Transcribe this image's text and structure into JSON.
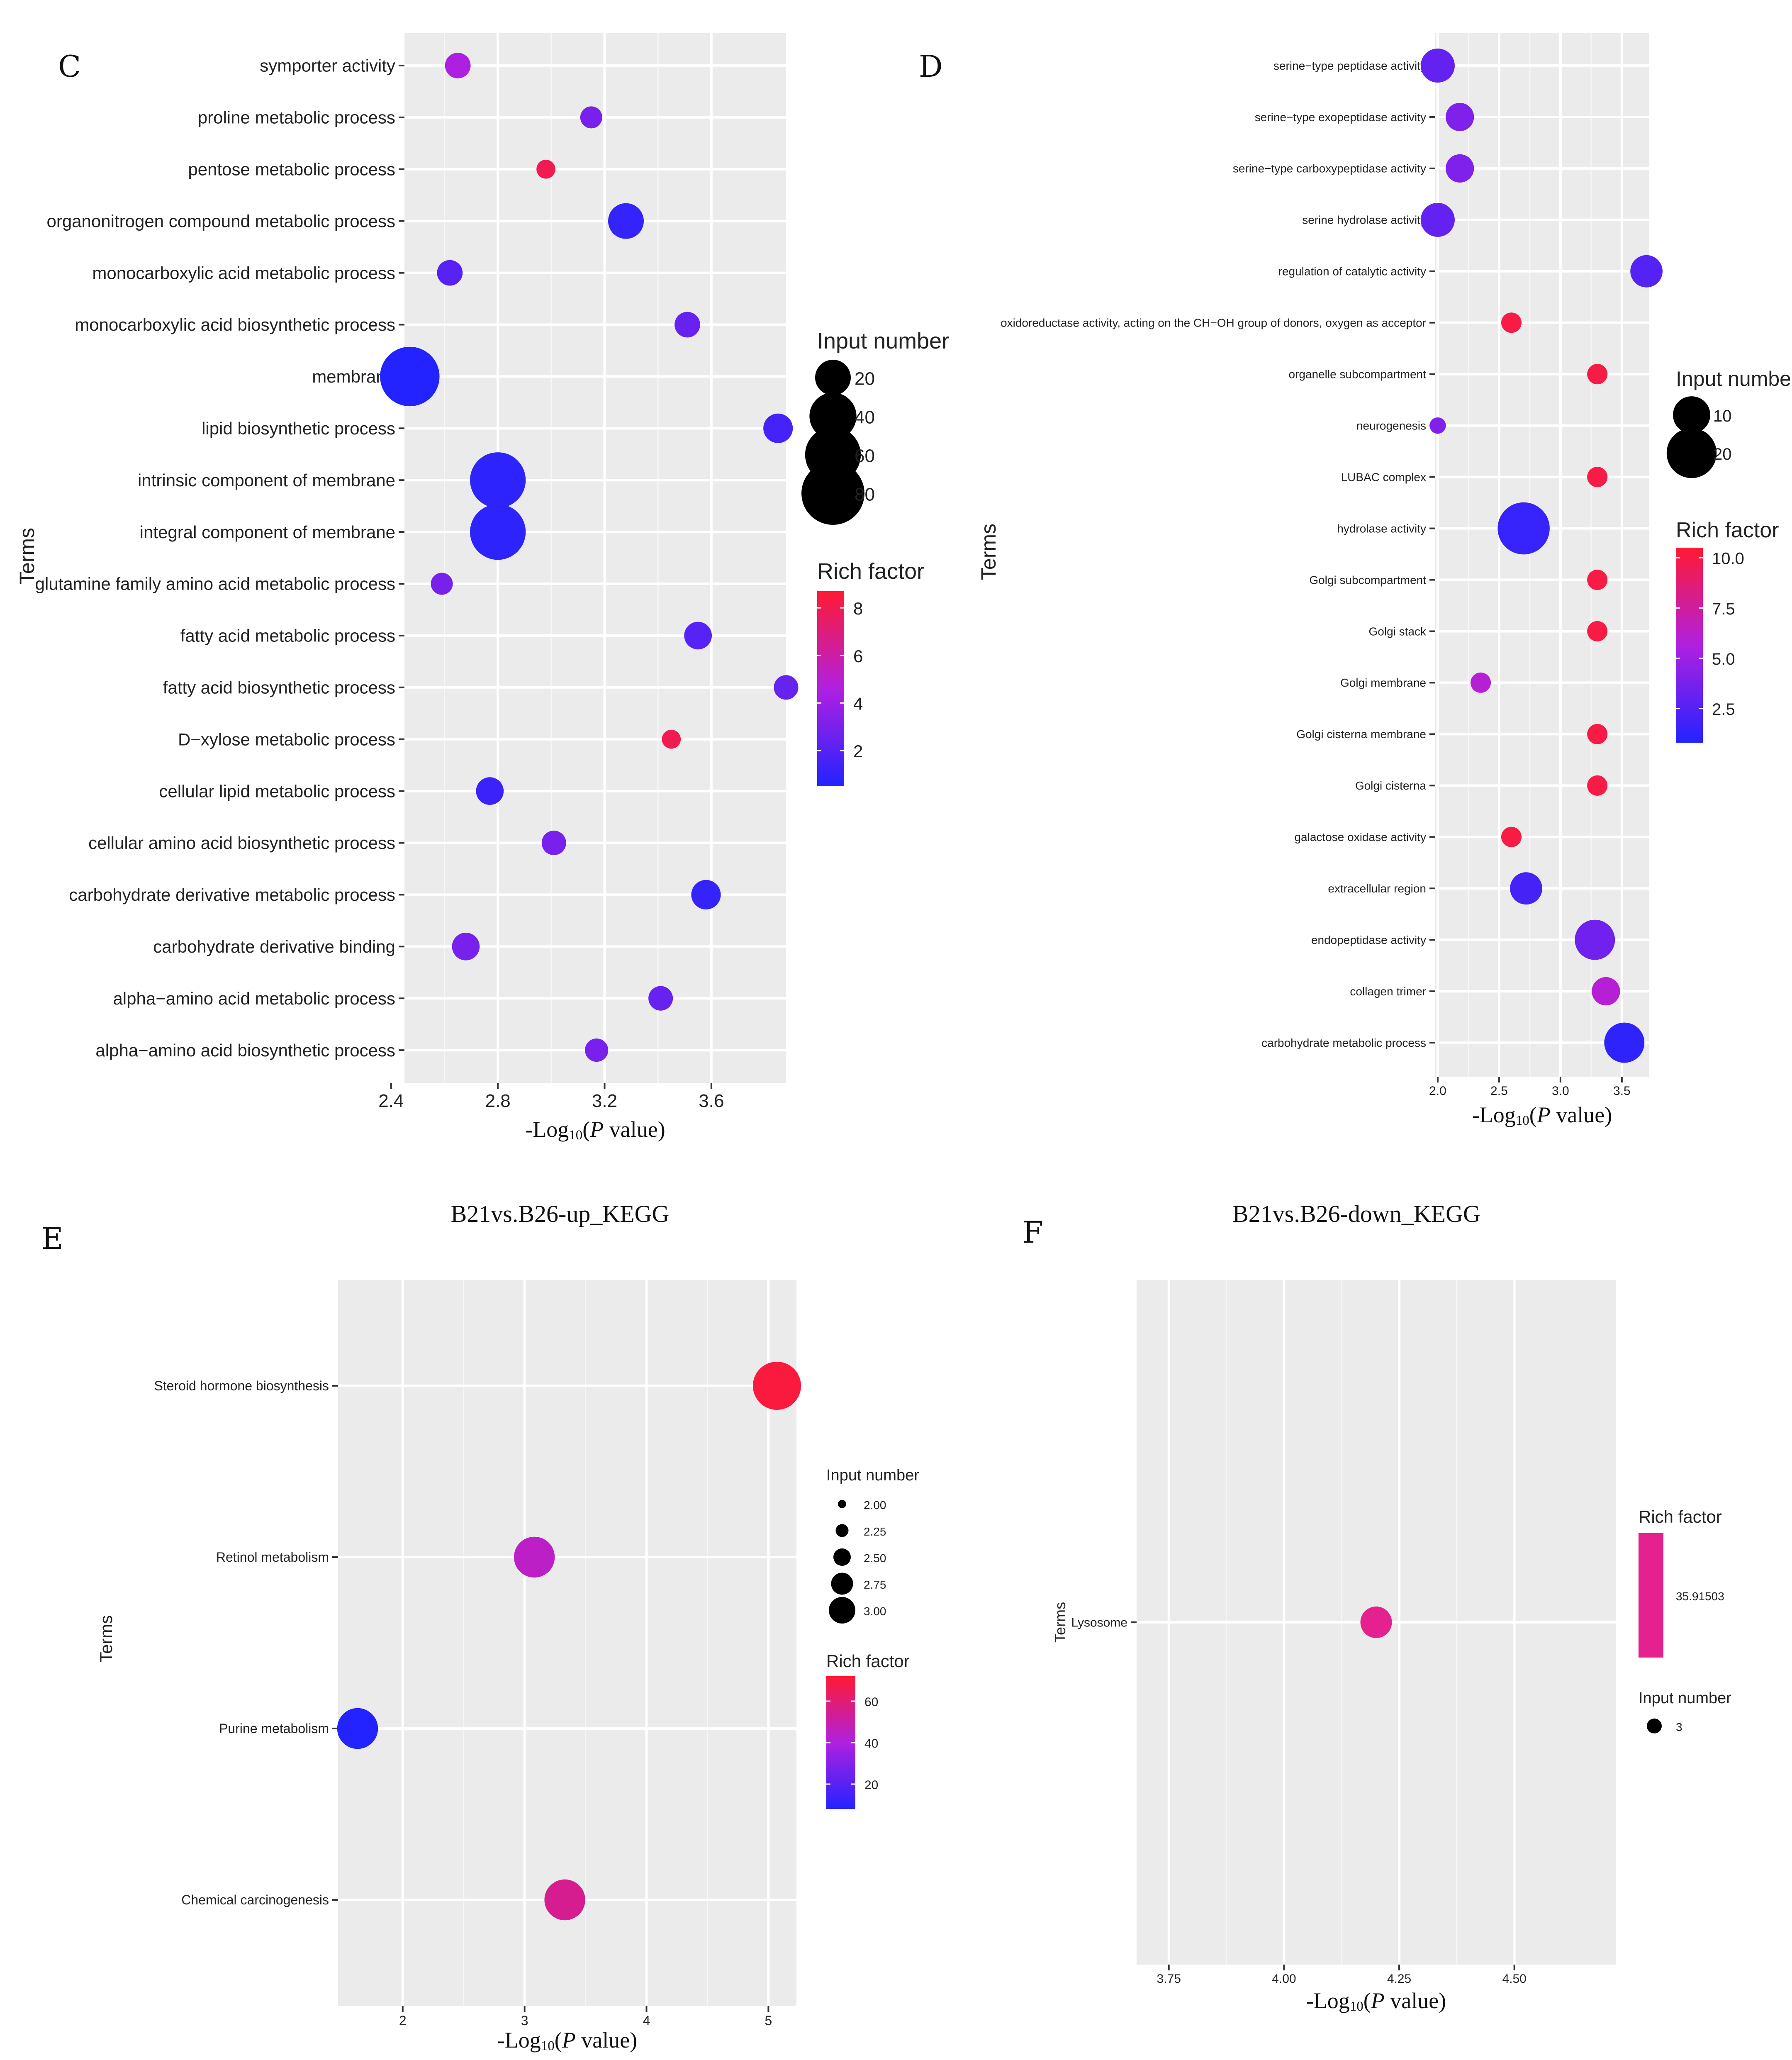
{
  "figure": {
    "panels": [
      {
        "letter": "C",
        "title": ""
      },
      {
        "letter": "D",
        "title": ""
      },
      {
        "letter": "E",
        "title": "B21vs.B26-up_KEGG"
      },
      {
        "letter": "F",
        "title": "B21vs.B26-down_KEGG"
      }
    ]
  },
  "chart_data": [
    {
      "id": "C",
      "type": "scatter",
      "title": "",
      "ylabel": "Terms",
      "xlabel": "-Log10(P value)",
      "xlim": [
        2.45,
        3.88
      ],
      "x_ticks": [
        2.4,
        2.8,
        3.2,
        3.6
      ],
      "x_tick_labels": [
        "2.4",
        "2.8",
        "3.2",
        "3.6"
      ],
      "terms": [
        "symporter activity",
        "proline metabolic process",
        "pentose metabolic process",
        "organonitrogen compound metabolic process",
        "monocarboxylic acid metabolic process",
        "monocarboxylic acid biosynthetic process",
        "membrane",
        "lipid biosynthetic process",
        "intrinsic component of membrane",
        "integral component of membrane",
        "glutamine family amino acid metabolic process",
        "fatty acid metabolic process",
        "fatty acid biosynthetic process",
        "D−xylose metabolic process",
        "cellular lipid metabolic process",
        "cellular amino acid biosynthetic process",
        "carbohydrate derivative metabolic process",
        "carbohydrate derivative binding",
        "alpha−amino acid metabolic process",
        "alpha−amino acid biosynthetic process"
      ],
      "x": [
        2.65,
        3.15,
        2.98,
        3.28,
        2.62,
        3.51,
        2.47,
        3.85,
        2.8,
        2.8,
        2.59,
        3.55,
        3.88,
        3.45,
        2.77,
        3.01,
        3.58,
        2.68,
        3.41,
        3.17
      ],
      "input_number": [
        8,
        5,
        3,
        20,
        8,
        8,
        70,
        12,
        60,
        60,
        5,
        10,
        7,
        3,
        10,
        7,
        12,
        10,
        7,
        6
      ],
      "rich_factor": [
        4.5,
        3.0,
        8.0,
        1.0,
        2.0,
        2.5,
        0.5,
        1.5,
        0.8,
        0.8,
        3.0,
        2.0,
        2.5,
        8.0,
        1.2,
        3.0,
        1.0,
        3.0,
        2.5,
        3.0
      ],
      "legend": {
        "size_title": "Input number",
        "size_values": [
          20,
          40,
          60,
          80
        ],
        "size_labels": [
          "20",
          "40",
          "60",
          "80"
        ],
        "color_title": "Rich factor",
        "color_range": [
          0.5,
          8.7
        ],
        "color_ticks": [
          2,
          4,
          6,
          8
        ],
        "color_tick_labels": [
          "2",
          "4",
          "6",
          "8"
        ]
      }
    },
    {
      "id": "D",
      "type": "scatter",
      "title": "",
      "ylabel": "Terms",
      "xlabel": "-Log10(P value)",
      "xlim": [
        1.98,
        3.72
      ],
      "x_ticks": [
        2.0,
        2.5,
        3.0,
        3.5
      ],
      "x_tick_labels": [
        "2.0",
        "2.5",
        "3.0",
        "3.5"
      ],
      "terms": [
        "serine−type peptidase activity",
        "serine−type exopeptidase activity",
        "serine−type carboxypeptidase activity",
        "serine hydrolase activity",
        "regulation of catalytic activity",
        "oxidoreductase activity, acting on the CH−OH group of donors, oxygen as acceptor",
        "organelle subcompartment",
        "neurogenesis",
        "LUBAC complex",
        "hydrolase activity",
        "Golgi subcompartment",
        "Golgi stack",
        "Golgi membrane",
        "Golgi cisterna membrane",
        "Golgi cisterna",
        "galactose oxidase activity",
        "extracellular region",
        "endopeptidase activity",
        "collagen trimer",
        "carbohydrate metabolic process"
      ],
      "x": [
        2.0,
        2.18,
        2.18,
        2.0,
        3.7,
        2.6,
        3.3,
        2.0,
        3.3,
        2.7,
        3.3,
        3.3,
        2.35,
        3.3,
        3.3,
        2.6,
        2.72,
        3.28,
        3.37,
        3.52
      ],
      "input_number": [
        8,
        5,
        5,
        8,
        7,
        2,
        2,
        1,
        2,
        22,
        2,
        2,
        2,
        2,
        2,
        2,
        7,
        12,
        5,
        12
      ],
      "rich_factor": [
        3.0,
        4.0,
        4.0,
        3.0,
        2.5,
        10.0,
        10.0,
        4.0,
        10.0,
        1.5,
        10.0,
        10.0,
        6.0,
        10.0,
        10.0,
        10.0,
        2.0,
        3.5,
        6.0,
        1.2
      ],
      "legend": {
        "size_title": "Input number",
        "size_values": [
          10,
          20
        ],
        "size_labels": [
          "10",
          "20"
        ],
        "color_title": "Rich factor",
        "color_range": [
          0.8,
          10.5
        ],
        "color_ticks": [
          2.5,
          5.0,
          7.5,
          10.0
        ],
        "color_tick_labels": [
          "2.5",
          "5.0",
          "7.5",
          "10.0"
        ]
      }
    },
    {
      "id": "E",
      "type": "scatter",
      "title": "B21vs.B26-up_KEGG",
      "ylabel": "Terms",
      "xlabel": "-Log10(P value)",
      "xlim": [
        1.47,
        5.23
      ],
      "x_ticks": [
        2,
        3,
        4,
        5
      ],
      "x_tick_labels": [
        "2",
        "3",
        "4",
        "5"
      ],
      "terms": [
        "Steroid hormone biosynthesis",
        "Retinol metabolism",
        "Purine metabolism",
        "Chemical carcinogenesis"
      ],
      "x": [
        5.07,
        3.08,
        1.63,
        3.33
      ],
      "input_number": [
        3,
        2,
        2,
        2
      ],
      "rich_factor": [
        70,
        45,
        8,
        55
      ],
      "legend": {
        "size_title": "Input number",
        "size_values": [
          2.0,
          2.25,
          2.5,
          2.75,
          3.0
        ],
        "size_labels": [
          "2.00",
          "2.25",
          "2.50",
          "2.75",
          "3.00"
        ],
        "color_title": "Rich factor",
        "color_range": [
          8,
          72
        ],
        "color_ticks": [
          20,
          40,
          60
        ],
        "color_tick_labels": [
          "20",
          "40",
          "60"
        ]
      }
    },
    {
      "id": "F",
      "type": "scatter",
      "title": "B21vs.B26-down_KEGG",
      "ylabel": "Terms",
      "xlabel": "-Log10(P value)",
      "xlim": [
        3.68,
        4.72
      ],
      "x_ticks": [
        3.75,
        4.0,
        4.25,
        4.5
      ],
      "x_tick_labels": [
        "3.75",
        "4.00",
        "4.25",
        "4.50"
      ],
      "terms": [
        "Lysosome"
      ],
      "x": [
        4.2
      ],
      "input_number": [
        3
      ],
      "rich_factor": [
        35.91503
      ],
      "legend": {
        "color_title": "Rich factor",
        "color_label": "35.91503",
        "color_hex": "#e5208f",
        "size_title": "Input number",
        "size_values": [
          3
        ],
        "size_labels": [
          "3"
        ]
      }
    }
  ]
}
